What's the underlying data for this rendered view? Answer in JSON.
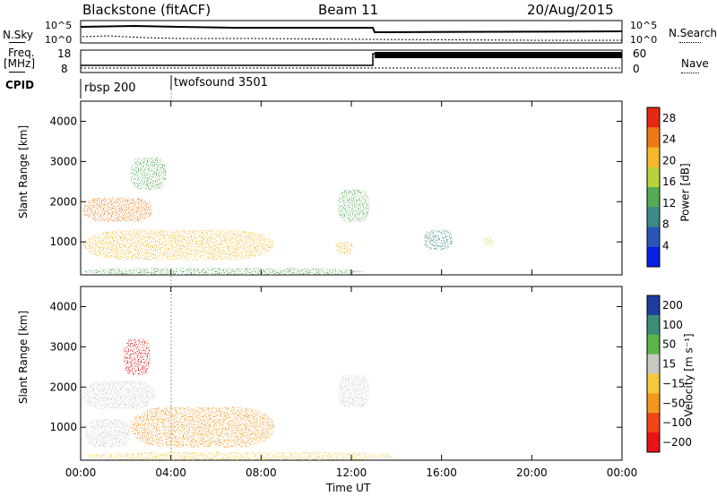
{
  "header": {
    "station": "Blackstone (fitACF)",
    "beam": "Beam 11",
    "date": "20/Aug/2015"
  },
  "left_labels": {
    "nsky": "N.Sky",
    "freq_line1": "Freq.",
    "freq_line2": "[MHz]",
    "cpid": "CPID"
  },
  "right_labels": {
    "nsearch": "N.Search",
    "nave": "Nave"
  },
  "noise_axis": {
    "left_top": "10^5",
    "left_bottom": "10^0",
    "right_top": "10^5",
    "right_bottom": "10^0"
  },
  "freq_axis": {
    "left_top": "18",
    "left_bottom": "8",
    "right_top": "60",
    "right_bottom": "0"
  },
  "cpid_segments": [
    {
      "label": "rbsp 200",
      "start_hour": 0.0
    },
    {
      "label": "twofsound 3501",
      "start_hour": 4.0
    }
  ],
  "power_colorbar": {
    "label": "Power [dB]",
    "ticks": [
      "28",
      "24",
      "20",
      "16",
      "12",
      "8",
      "4"
    ],
    "range": [
      0,
      30
    ]
  },
  "velocity_colorbar": {
    "label": "Velocity [m s⁻¹]",
    "ticks": [
      "200",
      "100",
      "50",
      "15",
      "−15",
      "−50",
      "−100",
      "−200"
    ]
  },
  "slant_label": "Slant Range [km]",
  "x_axis_label": "Time UT",
  "x_ticks": [
    "00:00",
    "04:00",
    "08:00",
    "12:00",
    "16:00",
    "20:00",
    "00:00"
  ],
  "y_ticks": [
    "1000",
    "2000",
    "3000",
    "4000"
  ],
  "colors": {
    "power_scale": [
      "#0a1ee6",
      "#2a55b8",
      "#3d8a8a",
      "#55aa55",
      "#b8d23c",
      "#f5b82a",
      "#f07814",
      "#e62814"
    ],
    "velocity_scale": [
      "#e61414",
      "#f04614",
      "#f5961e",
      "#f5c83c",
      "#c8c8c0",
      "#5ab446",
      "#3c8c78",
      "#1e3ca0"
    ]
  },
  "chart_data": {
    "type": "heatmap",
    "panels": [
      "power",
      "velocity"
    ],
    "x_range_hours": [
      0,
      24
    ],
    "y_range_km": [
      180,
      4500
    ],
    "frequency_mhz": [
      {
        "from_hour": 0,
        "to_hour": 13.1,
        "value": 11
      },
      {
        "from_hour": 13.1,
        "to_hour": 24,
        "value": 12
      }
    ],
    "nave": [
      {
        "from_hour": 0,
        "to_hour": 13.1,
        "value": 15
      },
      {
        "from_hour": 13.1,
        "to_hour": 24,
        "value": 60
      }
    ],
    "power_blobs": [
      {
        "t0": 0.1,
        "t1": 3.2,
        "r0": 1500,
        "r1": 2100,
        "power": 26
      },
      {
        "t0": 2.2,
        "t1": 3.8,
        "r0": 2300,
        "r1": 3100,
        "power": 12
      },
      {
        "t0": 0.1,
        "t1": 8.6,
        "r0": 550,
        "r1": 1300,
        "power": 22
      },
      {
        "t0": 0.1,
        "t1": 12.5,
        "r0": 180,
        "r1": 350,
        "power": 14
      },
      {
        "t0": 11.4,
        "t1": 12.8,
        "r0": 1500,
        "r1": 2300,
        "power": 12
      },
      {
        "t0": 11.3,
        "t1": 12.1,
        "r0": 700,
        "r1": 1000,
        "power": 20
      },
      {
        "t0": 15.2,
        "t1": 16.5,
        "r0": 800,
        "r1": 1300,
        "power": 10
      },
      {
        "t0": 17.8,
        "t1": 18.3,
        "r0": 900,
        "r1": 1100,
        "power": 18
      }
    ],
    "velocity_blobs": [
      {
        "t0": 0.1,
        "t1": 3.3,
        "r0": 1450,
        "r1": 2150,
        "velocity": 5
      },
      {
        "t0": 1.9,
        "t1": 3.1,
        "r0": 2300,
        "r1": 3200,
        "velocity": -210
      },
      {
        "t0": 0.2,
        "t1": 2.2,
        "r0": 500,
        "r1": 1200,
        "velocity": 5
      },
      {
        "t0": 2.2,
        "t1": 8.6,
        "r0": 500,
        "r1": 1500,
        "velocity": -55
      },
      {
        "t0": 0.1,
        "t1": 14.0,
        "r0": 180,
        "r1": 380,
        "velocity": -30
      },
      {
        "t0": 11.4,
        "t1": 12.8,
        "r0": 1500,
        "r1": 2300,
        "velocity": 5
      }
    ]
  }
}
